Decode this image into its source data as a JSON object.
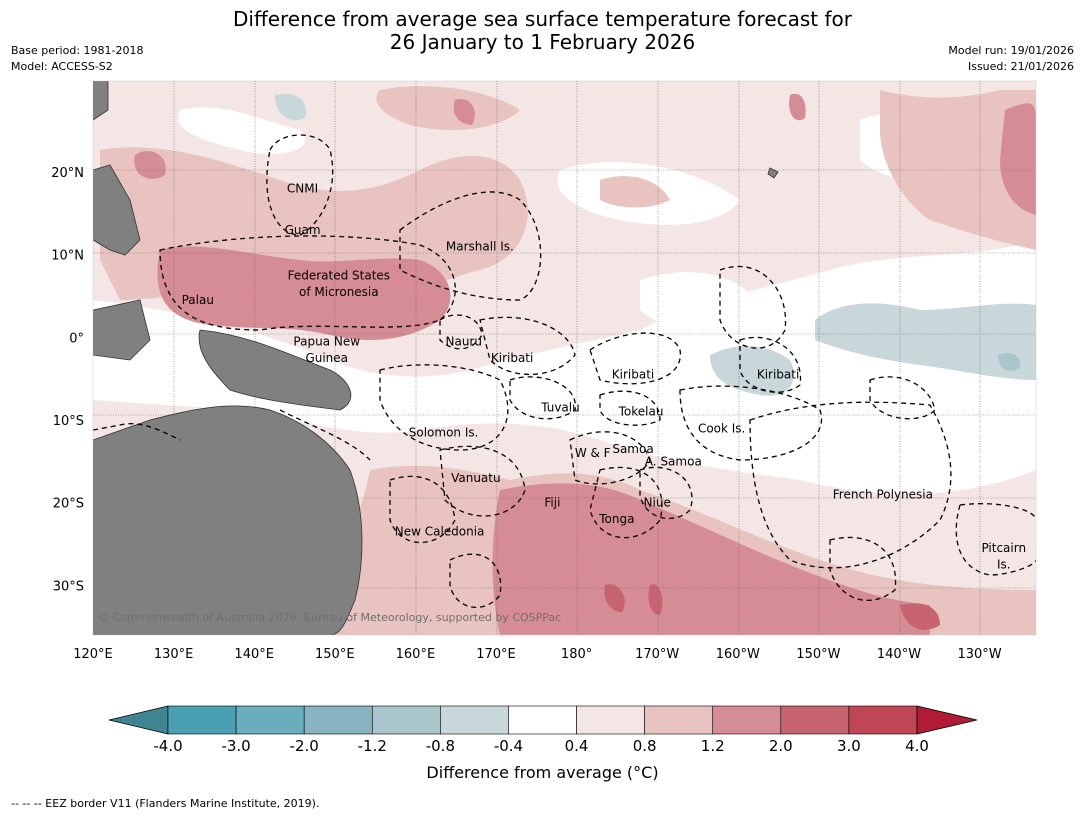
{
  "header": {
    "title_line1": "Difference from average sea surface temperature forecast for",
    "title_line2": "26 January to 1 February 2026",
    "base_period": "Base period: 1981-2018",
    "model": "Model: ACCESS-S2",
    "model_run": "Model run: 19/01/2026",
    "issued": "Issued: 21/01/2026"
  },
  "map": {
    "lon_labels": [
      "120°E",
      "130°E",
      "140°E",
      "150°E",
      "160°E",
      "170°E",
      "180°",
      "170°W",
      "160°W",
      "150°W",
      "140°W",
      "130°W"
    ],
    "lat_labels": [
      "20°N",
      "10°N",
      "0°",
      "10°S",
      "20°S",
      "30°S"
    ],
    "lon_range_east": [
      120,
      237
    ],
    "lat_range": [
      -36,
      31
    ],
    "grid": true,
    "land_color": "#808080",
    "copyright": "© Commonwealth of Australia 2026, Bureau of Meteorology, supported by COSPPac",
    "places": [
      {
        "name": "CNMI",
        "lon": 146,
        "lat": 18
      },
      {
        "name": "Guam",
        "lon": 146,
        "lat": 13
      },
      {
        "name": "Marshall Is.",
        "lon": 168,
        "lat": 11
      },
      {
        "name": "Federated States",
        "lon": 150.5,
        "lat": 7.5
      },
      {
        "name": "of Micronesia",
        "lon": 150.5,
        "lat": 5.5
      },
      {
        "name": "Palau",
        "lon": 133,
        "lat": 4.5
      },
      {
        "name": "Papua New",
        "lon": 149,
        "lat": -0.5
      },
      {
        "name": "Guinea",
        "lon": 149,
        "lat": -2.5
      },
      {
        "name": "Nauru",
        "lon": 166,
        "lat": -0.5
      },
      {
        "name": "Kiribati",
        "lon": 172,
        "lat": -2.5
      },
      {
        "name": "Kiribati",
        "lon": 187,
        "lat": -4.5
      },
      {
        "name": "Kiribati",
        "lon": 205,
        "lat": -4.5
      },
      {
        "name": "Tuvalu",
        "lon": 178,
        "lat": -8.5
      },
      {
        "name": "Tokelau",
        "lon": 188,
        "lat": -9
      },
      {
        "name": "Cook Is.",
        "lon": 198,
        "lat": -11
      },
      {
        "name": "Solomon Is.",
        "lon": 163.5,
        "lat": -11.5
      },
      {
        "name": "Samoa",
        "lon": 187,
        "lat": -13.5
      },
      {
        "name": "W & F",
        "lon": 182,
        "lat": -14
      },
      {
        "name": "A. Samoa",
        "lon": 192,
        "lat": -15
      },
      {
        "name": "Vanuatu",
        "lon": 167.5,
        "lat": -17
      },
      {
        "name": "Fiji",
        "lon": 177,
        "lat": -20
      },
      {
        "name": "Niue",
        "lon": 190,
        "lat": -20
      },
      {
        "name": "French Polynesia",
        "lon": 218,
        "lat": -19
      },
      {
        "name": "Tonga",
        "lon": 185,
        "lat": -22
      },
      {
        "name": "New Caledonia",
        "lon": 163,
        "lat": -23.5
      },
      {
        "name": "Pitcairn",
        "lon": 233,
        "lat": -25.5
      },
      {
        "name": "Is.",
        "lon": 233,
        "lat": -27.5
      }
    ]
  },
  "colorbar": {
    "ticks": [
      "-4.0",
      "-3.0",
      "-2.0",
      "-1.2",
      "-0.8",
      "-0.4",
      "0.4",
      "0.8",
      "1.2",
      "2.0",
      "3.0",
      "4.0"
    ],
    "colors": [
      "#3f8591",
      "#4aa0b2",
      "#6aadbd",
      "#87b4c0",
      "#a8c6cb",
      "#c8d7da",
      "#ffffff",
      "#f4e6e4",
      "#e8c3c0",
      "#d68c94",
      "#c8646f",
      "#be4655",
      "#b01c35"
    ],
    "label": "Difference from average (°C)"
  },
  "footnote": "-- -- -- EEZ border V11 (Flanders Marine Institute, 2019)."
}
